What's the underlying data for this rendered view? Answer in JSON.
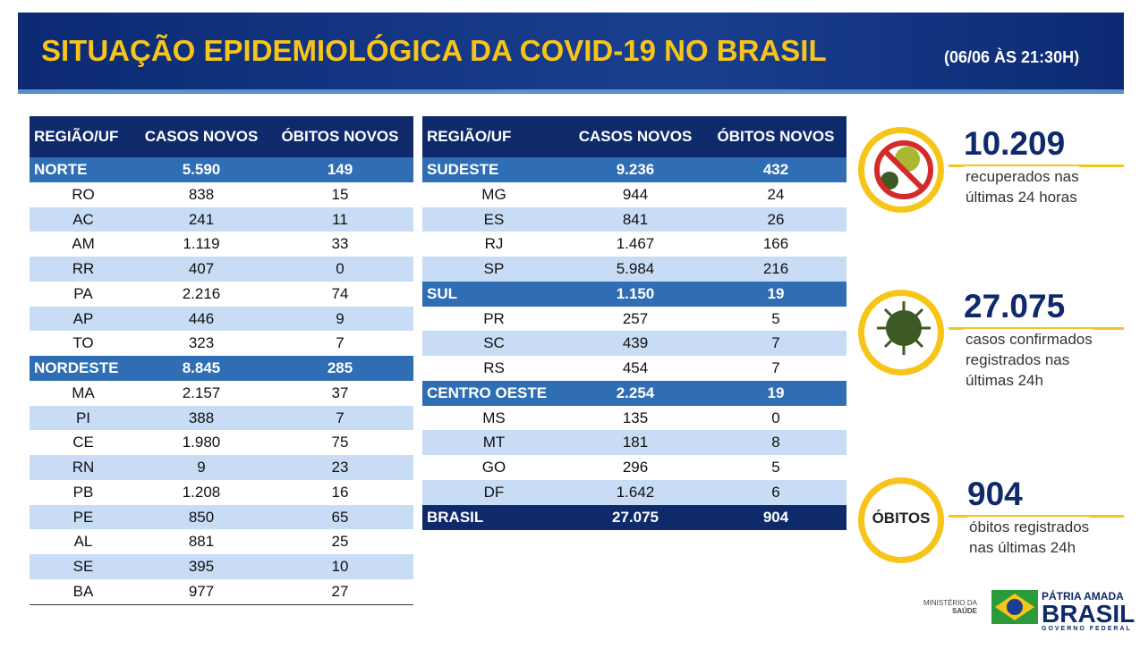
{
  "header": {
    "title": "SITUAÇÃO EPIDEMIOLÓGICA DA COVID-19 NO BRASIL",
    "subtitle": "(06/06 ÀS 21:30H)"
  },
  "tables": [
    {
      "columns": [
        "REGIÃO/UF",
        "CASOS NOVOS",
        "ÓBITOS NOVOS"
      ],
      "groups": [
        {
          "region": [
            "NORTE",
            "5.590",
            "149"
          ],
          "states": [
            [
              "RO",
              "838",
              "15"
            ],
            [
              "AC",
              "241",
              "11"
            ],
            [
              "AM",
              "1.119",
              "33"
            ],
            [
              "RR",
              "407",
              "0"
            ],
            [
              "PA",
              "2.216",
              "74"
            ],
            [
              "AP",
              "446",
              "9"
            ],
            [
              "TO",
              "323",
              "7"
            ]
          ]
        },
        {
          "region": [
            "NORDESTE",
            "8.845",
            "285"
          ],
          "states": [
            [
              "MA",
              "2.157",
              "37"
            ],
            [
              "PI",
              "388",
              "7"
            ],
            [
              "CE",
              "1.980",
              "75"
            ],
            [
              "RN",
              "9",
              "23"
            ],
            [
              "PB",
              "1.208",
              "16"
            ],
            [
              "PE",
              "850",
              "65"
            ],
            [
              "AL",
              "881",
              "25"
            ],
            [
              "SE",
              "395",
              "10"
            ],
            [
              "BA",
              "977",
              "27"
            ]
          ]
        }
      ]
    },
    {
      "columns": [
        "REGIÃO/UF",
        "CASOS NOVOS",
        "ÓBITOS NOVOS"
      ],
      "groups": [
        {
          "region": [
            "SUDESTE",
            "9.236",
            "432"
          ],
          "states": [
            [
              "MG",
              "944",
              "24"
            ],
            [
              "ES",
              "841",
              "26"
            ],
            [
              "RJ",
              "1.467",
              "166"
            ],
            [
              "SP",
              "5.984",
              "216"
            ]
          ]
        },
        {
          "region": [
            "SUL",
            "1.150",
            "19"
          ],
          "states": [
            [
              "PR",
              "257",
              "5"
            ],
            [
              "SC",
              "439",
              "7"
            ],
            [
              "RS",
              "454",
              "7"
            ]
          ]
        },
        {
          "region": [
            "CENTRO OESTE",
            "2.254",
            "19"
          ],
          "states": [
            [
              "MS",
              "135",
              "0"
            ],
            [
              "MT",
              "181",
              "8"
            ],
            [
              "GO",
              "296",
              "5"
            ],
            [
              "DF",
              "1.642",
              "6"
            ]
          ]
        }
      ],
      "total": [
        "BRASIL",
        "27.075",
        "904"
      ]
    }
  ],
  "stats": [
    {
      "value": "10.209",
      "lines": [
        "recuperados nas",
        "últimas 24 horas"
      ]
    },
    {
      "value": "27.075",
      "lines": [
        "casos confirmados",
        "registrados nas",
        "últimas 24h"
      ]
    },
    {
      "badge": "ÓBITOS",
      "value": "904",
      "lines": [
        "óbitos registrados",
        "nas últimas 24h"
      ]
    }
  ],
  "footer": {
    "ministry": [
      "MINISTÉRIO DA",
      "SAÚDE"
    ],
    "slogan": "PÁTRIA AMADA",
    "brand": "BRASIL",
    "government": "GOVERNO FEDERAL"
  }
}
